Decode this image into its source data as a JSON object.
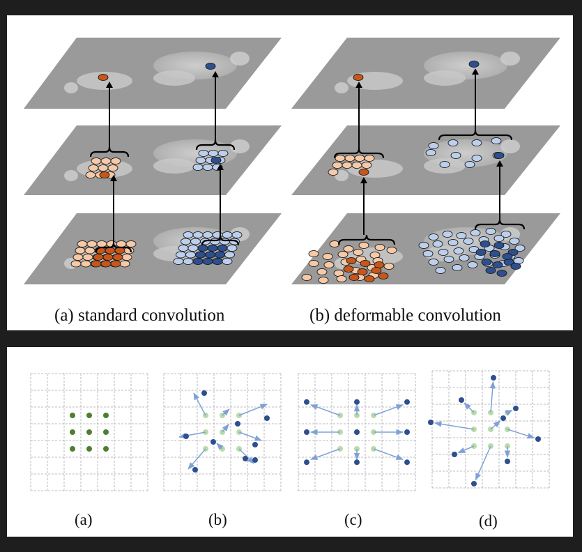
{
  "top_figure": {
    "caption_a": "(a) standard convolution",
    "caption_b": "(b) deformable convolution"
  },
  "bottom_figure": {
    "labels": [
      "(a)",
      "(b)",
      "(c)",
      "(d)"
    ]
  },
  "colors": {
    "background": "#1e1e1e",
    "panel": "#ffffff",
    "plane_fill": "#9a9a9a",
    "orange_dark": "#c8561a",
    "orange_light": "#f6c9a7",
    "blue_dark": "#2e4f8f",
    "blue_light": "#bcd0ee",
    "green_dark": "#4d7f33",
    "green_light": "#b9dca9",
    "arrow_blue": "#7fa1d6"
  }
}
